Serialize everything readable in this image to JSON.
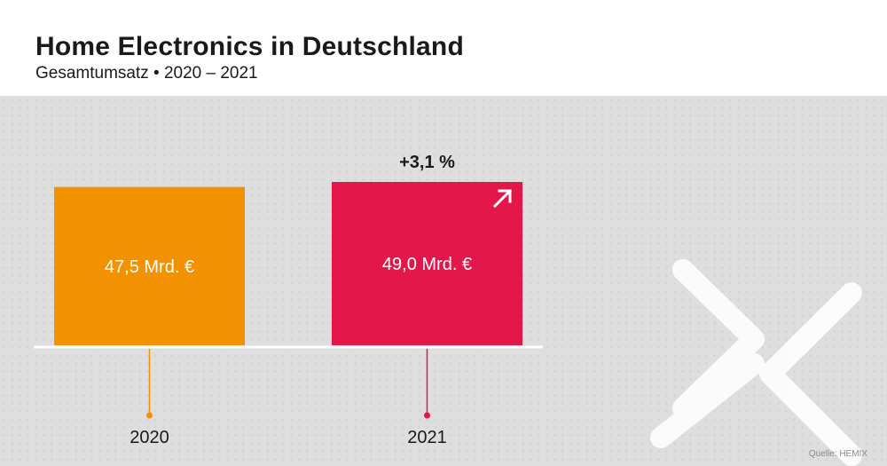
{
  "header": {
    "title": "Home Electronics in Deutschland",
    "subtitle": "Gesamtumsatz • 2020 – 2021"
  },
  "chart_data": {
    "type": "bar",
    "categories": [
      "2020",
      "2021"
    ],
    "values": [
      47.5,
      49.0
    ],
    "value_labels": [
      "47,5 Mrd. €",
      "49,0 Mrd. €"
    ],
    "colors": [
      "#f29200",
      "#e3174a"
    ],
    "change_label": "+3,1 %",
    "change_icon": "arrow-up-right-icon",
    "title": "Home Electronics in Deutschland",
    "subtitle": "Gesamtumsatz • 2020 – 2021",
    "xlabel": "",
    "ylabel": "",
    "grid": false,
    "legend": "none"
  },
  "footer": {
    "source": "Quelle: HEMIX"
  },
  "decoration": {
    "logo": "x-logo-watermark"
  }
}
